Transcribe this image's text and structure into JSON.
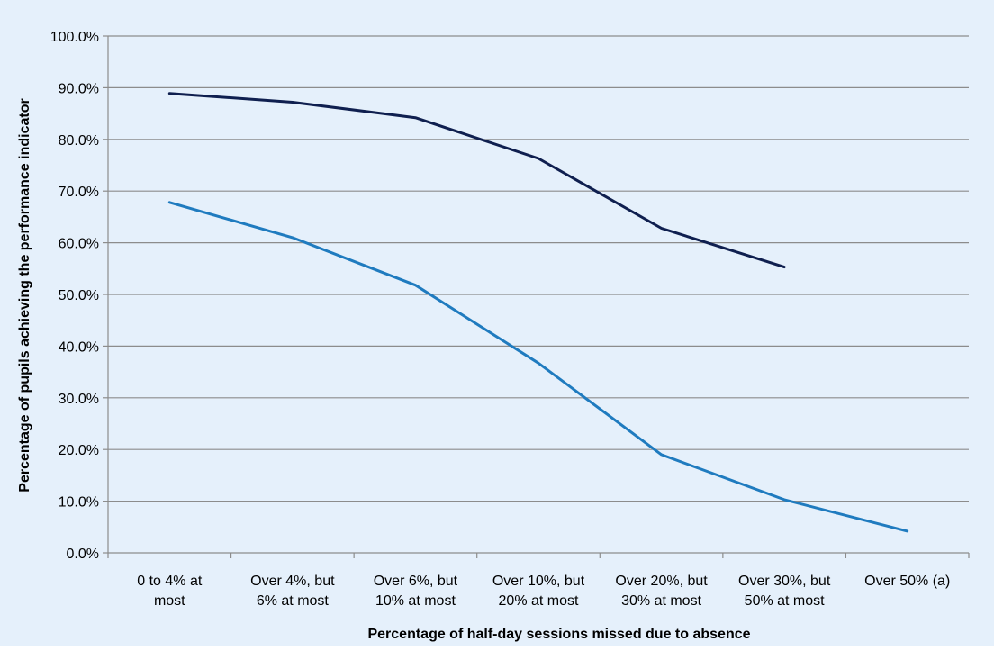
{
  "chart_data": {
    "type": "line",
    "title": "",
    "xlabel": "Percentage of half-day sessions missed due to absence",
    "ylabel": "Percentage of pupils achieving the performance indicator",
    "categories": [
      [
        "0 to 4% at",
        "most"
      ],
      [
        "Over 4%, but",
        "6% at most"
      ],
      [
        "Over 6%, but",
        "10% at most"
      ],
      [
        "Over 10%, but",
        "20% at most"
      ],
      [
        "Over 20%, but",
        "30% at most"
      ],
      [
        "Over 30%, but",
        "50% at most"
      ],
      [
        "Over 50% (a)"
      ]
    ],
    "ylim": [
      0,
      100
    ],
    "yticks": [
      "0.0%",
      "10.0%",
      "20.0%",
      "30.0%",
      "40.0%",
      "50.0%",
      "60.0%",
      "70.0%",
      "80.0%",
      "90.0%",
      "100.0%"
    ],
    "grid": true,
    "series": [
      {
        "values": [
          88.9,
          87.2,
          84.2,
          76.3,
          62.8,
          55.3,
          null
        ],
        "color": "#0f1f4f"
      },
      {
        "values": [
          67.8,
          61.0,
          51.8,
          36.7,
          19.0,
          10.3,
          4.2
        ],
        "color": "#1f7bbf"
      }
    ]
  }
}
